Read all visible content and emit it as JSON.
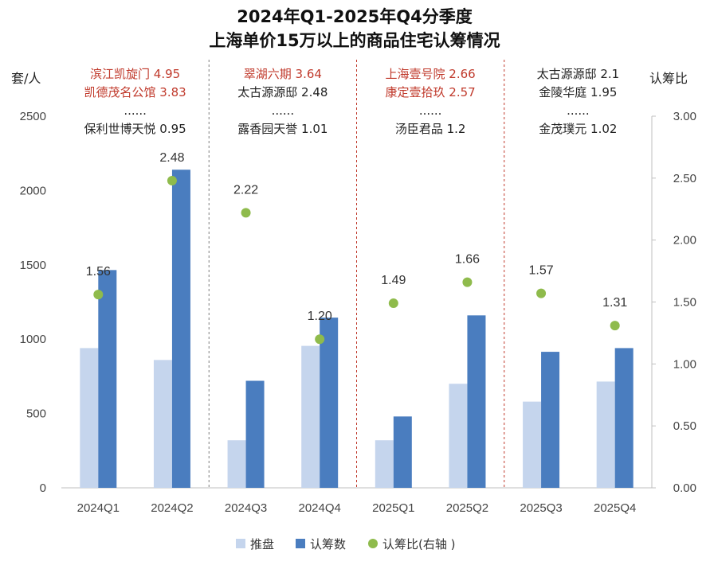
{
  "chart_data": {
    "type": "bar",
    "title_lines": [
      "2024年Q1-2025年Q4分季度",
      "上海单价15万以上的商品住宅认筹情况"
    ],
    "ylabel_left": "套/人",
    "ylabel_right": "认筹比",
    "categories": [
      "2024Q1",
      "2024Q2",
      "2024Q3",
      "2024Q4",
      "2025Q1",
      "2025Q2",
      "2025Q3",
      "2025Q4"
    ],
    "ylim_left": [
      0,
      2500
    ],
    "yticks_left": [
      "0",
      "500",
      "1000",
      "1500",
      "2000",
      "2500"
    ],
    "ylim_right": [
      0,
      3.0
    ],
    "yticks_right": [
      "0.00",
      "0.50",
      "1.00",
      "1.50",
      "2.00",
      "2.50",
      "3.00"
    ],
    "series": [
      {
        "name": "推盘",
        "type": "bar",
        "axis": "left",
        "color": "#c5d5ed",
        "values": [
          940,
          860,
          320,
          955,
          320,
          700,
          580,
          715
        ]
      },
      {
        "name": "认筹数",
        "type": "bar",
        "axis": "left",
        "color": "#4a7dbf",
        "values": [
          1465,
          2140,
          720,
          1145,
          480,
          1160,
          915,
          940
        ]
      },
      {
        "name": "认筹比(右轴 )",
        "type": "scatter",
        "axis": "right",
        "color": "#8fbb4c",
        "values": [
          1.56,
          2.48,
          2.22,
          1.2,
          1.49,
          1.66,
          1.57,
          1.31
        ],
        "labels": [
          "1.56",
          "2.48",
          "2.22",
          "1.20",
          "1.49",
          "1.66",
          "1.57",
          "1.31"
        ]
      }
    ],
    "annotations": [
      {
        "lines": [
          {
            "text": "滨江凯旋门 4.95",
            "color": "#c0392b"
          },
          {
            "text": "凯德茂名公馆 3.83",
            "color": "#c0392b"
          },
          {
            "text": "......",
            "color": "#222222"
          },
          {
            "text": "保利世博天悦 0.95",
            "color": "#222222"
          }
        ]
      },
      {
        "lines": [
          {
            "text": "翠湖六期 3.64",
            "color": "#c0392b"
          },
          {
            "text": "太古源源邸 2.48",
            "color": "#222222"
          },
          {
            "text": "......",
            "color": "#222222"
          },
          {
            "text": "露香园天誉 1.01",
            "color": "#222222"
          }
        ]
      },
      {
        "lines": [
          {
            "text": "上海壹号院 2.66",
            "color": "#c0392b"
          },
          {
            "text": "康定壹拾玖 2.57",
            "color": "#c0392b"
          },
          {
            "text": "......",
            "color": "#222222"
          },
          {
            "text": "汤臣君品 1.2",
            "color": "#222222"
          }
        ]
      },
      {
        "lines": [
          {
            "text": "太古源源邸 2.1",
            "color": "#222222"
          },
          {
            "text": "金陵华庭 1.95",
            "color": "#222222"
          },
          {
            "text": "......",
            "color": "#222222"
          },
          {
            "text": "金茂璞元 1.02",
            "color": "#222222"
          }
        ]
      }
    ],
    "legend": {
      "placement": "bottom-center"
    },
    "grid": false,
    "year_dividers": {
      "colors": [
        "#7f7f7f",
        "#c0392b",
        "#c0392b"
      ]
    }
  }
}
